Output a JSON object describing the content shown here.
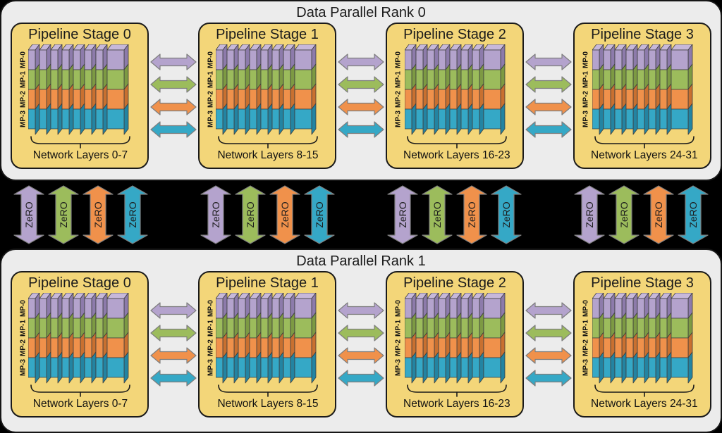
{
  "ranks": [
    {
      "title": "Data Parallel Rank 0",
      "stages": [
        {
          "title": "Pipeline Stage 0",
          "layers_label": "Network Layers 0-7"
        },
        {
          "title": "Pipeline Stage 1",
          "layers_label": "Network Layers 8-15"
        },
        {
          "title": "Pipeline Stage 2",
          "layers_label": "Network Layers 16-23"
        },
        {
          "title": "Pipeline Stage 3",
          "layers_label": "Network Layers 24-31"
        }
      ]
    },
    {
      "title": "Data Parallel Rank 1",
      "stages": [
        {
          "title": "Pipeline Stage 0",
          "layers_label": "Network Layers 0-7"
        },
        {
          "title": "Pipeline Stage 1",
          "layers_label": "Network Layers 8-15"
        },
        {
          "title": "Pipeline Stage 2",
          "layers_label": "Network Layers 16-23"
        },
        {
          "title": "Pipeline Stage 3",
          "layers_label": "Network Layers 24-31"
        }
      ]
    }
  ],
  "mp_labels": [
    "MP-0",
    "MP-1",
    "MP-2",
    "MP-3"
  ],
  "zero_label": "ZeRO",
  "layers_per_stage": 8,
  "palette": {
    "names": [
      "purple",
      "green",
      "orange",
      "blue"
    ],
    "front": [
      "#b4a3cd",
      "#9cbc5c",
      "#f0914b",
      "#35a8c6"
    ],
    "side": [
      "#8d7bab",
      "#7d9a43",
      "#c97030",
      "#2384a2"
    ],
    "cap": "#c7b8da",
    "arrow_outline": "#7e7e7e",
    "stage_fill": "#f3d679",
    "stage_border": "#1a1a1a",
    "rank_fill": "#ececec",
    "rank_border": "#161616",
    "background": "#000000",
    "text": "#1b1b1b"
  }
}
